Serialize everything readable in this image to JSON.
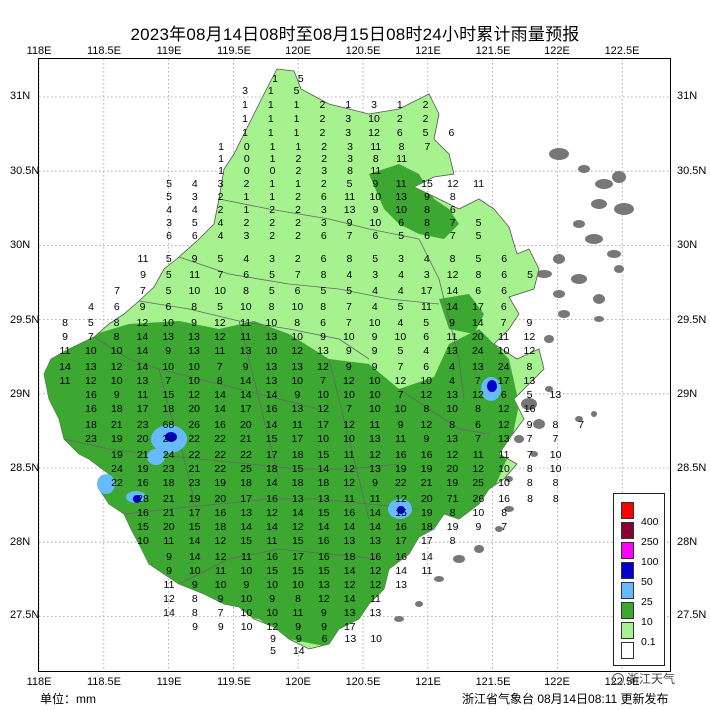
{
  "title": "2023年08月14日08时至08月15日08时24小时累计雨量预报",
  "axes": {
    "lon_ticks": [
      "118E",
      "118.5E",
      "119E",
      "119.5E",
      "120E",
      "120.5E",
      "121E",
      "121.5E",
      "122E",
      "122.5E"
    ],
    "lat_ticks": [
      "31N",
      "30.5N",
      "30N",
      "29.5N",
      "29N",
      "28.5N",
      "28N",
      "27.5N"
    ]
  },
  "legend": {
    "items": [
      {
        "label": "400",
        "color": "#ff0000"
      },
      {
        "label": "250",
        "color": "#8b0033"
      },
      {
        "label": "100",
        "color": "#ff00ff"
      },
      {
        "label": "50",
        "color": "#0000cc"
      },
      {
        "label": "25",
        "color": "#66bbff"
      },
      {
        "label": "10",
        "color": "#3ca832"
      },
      {
        "label": "0.1",
        "color": "#a6f28f"
      },
      {
        "label": "",
        "color": "#ffffff"
      }
    ]
  },
  "unit": "单位：mm",
  "issuer": "浙江省气象台 08月14日08:11 更新发布",
  "watermark": "浙江天气",
  "colors": {
    "light_green": "#a6f28f",
    "mid_green": "#3ca832",
    "light_blue": "#66bbff",
    "dark_blue": "#0000cc",
    "islands": "#777777",
    "borders": "#666666"
  },
  "rainfall_values": [
    [
      "1",
      "5"
    ],
    [
      "3",
      "1",
      "5"
    ],
    [
      "1",
      "1",
      "1",
      "2",
      "1",
      "3",
      "1",
      "2"
    ],
    [
      "1",
      "1",
      "1",
      "2",
      "3",
      "10",
      "2",
      "2"
    ],
    [
      "1",
      "1",
      "1",
      "2",
      "3",
      "12",
      "6",
      "5",
      "6"
    ],
    [
      "1",
      "0",
      "1",
      "1",
      "2",
      "3",
      "11",
      "8",
      "7"
    ],
    [
      "1",
      "0",
      "1",
      "2",
      "2",
      "3",
      "8",
      "11"
    ],
    [
      "1",
      "0",
      "0",
      "2",
      "3",
      "8",
      "11"
    ],
    [
      "5",
      "4",
      "3",
      "2",
      "1",
      "1",
      "2",
      "5",
      "9",
      "11",
      "15",
      "12",
      "11"
    ],
    [
      "5",
      "3",
      "2",
      "1",
      "1",
      "2",
      "6",
      "11",
      "10",
      "13",
      "9",
      "8"
    ],
    [
      "4",
      "4",
      "2",
      "1",
      "2",
      "2",
      "3",
      "13",
      "9",
      "10",
      "8",
      "6"
    ],
    [
      "3",
      "5",
      "4",
      "2",
      "2",
      "2",
      "3",
      "9",
      "10",
      "6",
      "8",
      "7",
      "5"
    ],
    [
      "6",
      "6",
      "4",
      "3",
      "2",
      "2",
      "6",
      "7",
      "6",
      "5",
      "6",
      "7",
      "5"
    ],
    [
      "11",
      "5",
      "9",
      "5",
      "4",
      "3",
      "2",
      "6",
      "8",
      "5",
      "3",
      "4",
      "8",
      "5",
      "6"
    ],
    [
      "9",
      "5",
      "11",
      "7",
      "6",
      "5",
      "7",
      "8",
      "4",
      "3",
      "4",
      "3",
      "12",
      "8",
      "6",
      "5"
    ],
    [
      "7",
      "7",
      "5",
      "10",
      "10",
      "8",
      "5",
      "6",
      "5",
      "5",
      "4",
      "4",
      "17",
      "14",
      "6",
      "6"
    ],
    [
      "4",
      "6",
      "9",
      "6",
      "8",
      "5",
      "10",
      "8",
      "10",
      "8",
      "7",
      "4",
      "5",
      "11",
      "14",
      "17",
      "6"
    ],
    [
      "8",
      "5",
      "8",
      "12",
      "10",
      "9",
      "12",
      "11",
      "10",
      "8",
      "6",
      "7",
      "10",
      "4",
      "5",
      "9",
      "14",
      "7",
      "9"
    ],
    [
      "9",
      "7",
      "8",
      "14",
      "13",
      "13",
      "12",
      "11",
      "13",
      "10",
      "9",
      "10",
      "9",
      "10",
      "6",
      "11",
      "20",
      "11",
      "12"
    ],
    [
      "11",
      "10",
      "10",
      "14",
      "9",
      "13",
      "11",
      "13",
      "10",
      "12",
      "13",
      "9",
      "9",
      "5",
      "4",
      "13",
      "24",
      "10",
      "12"
    ],
    [
      "14",
      "13",
      "12",
      "14",
      "10",
      "10",
      "7",
      "9",
      "13",
      "13",
      "12",
      "9",
      "9",
      "7",
      "6",
      "4",
      "13",
      "24",
      "8"
    ],
    [
      "11",
      "12",
      "10",
      "13",
      "7",
      "10",
      "8",
      "14",
      "13",
      "10",
      "7",
      "12",
      "10",
      "12",
      "10",
      "4",
      "7",
      "17",
      "13"
    ],
    [
      "16",
      "9",
      "11",
      "15",
      "12",
      "14",
      "14",
      "14",
      "9",
      "10",
      "10",
      "10",
      "7",
      "12",
      "13",
      "12",
      "6",
      "5",
      "13"
    ],
    [
      "16",
      "18",
      "17",
      "18",
      "20",
      "14",
      "17",
      "16",
      "13",
      "12",
      "7",
      "10",
      "10",
      "8",
      "10",
      "8",
      "12",
      "16"
    ],
    [
      "18",
      "21",
      "23",
      "68",
      "26",
      "16",
      "20",
      "14",
      "11",
      "17",
      "12",
      "11",
      "9",
      "12",
      "8",
      "6",
      "12",
      "9",
      "8",
      "7"
    ],
    [
      "23",
      "19",
      "20",
      "24",
      "22",
      "22",
      "21",
      "15",
      "17",
      "10",
      "10",
      "13",
      "11",
      "9",
      "13",
      "7",
      "13",
      "7",
      "7"
    ],
    [
      "19",
      "21",
      "24",
      "22",
      "22",
      "22",
      "17",
      "18",
      "15",
      "11",
      "12",
      "16",
      "16",
      "12",
      "11",
      "11",
      "7",
      "10"
    ],
    [
      "24",
      "19",
      "23",
      "21",
      "22",
      "25",
      "18",
      "15",
      "14",
      "12",
      "13",
      "19",
      "19",
      "20",
      "12",
      "10",
      "8",
      "10"
    ],
    [
      "22",
      "16",
      "18",
      "23",
      "19",
      "18",
      "14",
      "18",
      "18",
      "12",
      "9",
      "22",
      "21",
      "19",
      "25",
      "10",
      "8",
      "8"
    ],
    [
      "28",
      "21",
      "19",
      "20",
      "17",
      "16",
      "13",
      "13",
      "11",
      "11",
      "12",
      "20",
      "71",
      "26",
      "16",
      "8",
      "8"
    ],
    [
      "16",
      "21",
      "17",
      "16",
      "13",
      "12",
      "14",
      "15",
      "16",
      "14",
      "15",
      "19",
      "8",
      "10",
      "8"
    ],
    [
      "15",
      "20",
      "15",
      "18",
      "14",
      "14",
      "12",
      "14",
      "14",
      "14",
      "16",
      "18",
      "19",
      "9",
      "7"
    ],
    [
      "10",
      "11",
      "14",
      "12",
      "15",
      "11",
      "15",
      "16",
      "13",
      "13",
      "17",
      "17",
      "8"
    ],
    [
      "9",
      "14",
      "12",
      "11",
      "16",
      "17",
      "16",
      "18",
      "16",
      "16",
      "14"
    ],
    [
      "9",
      "10",
      "11",
      "10",
      "15",
      "15",
      "15",
      "14",
      "12",
      "14",
      "11"
    ],
    [
      "11",
      "9",
      "10",
      "9",
      "10",
      "10",
      "13",
      "12",
      "12",
      "13"
    ],
    [
      "12",
      "8",
      "9",
      "10",
      "9",
      "8",
      "12",
      "14",
      "11"
    ],
    [
      "14",
      "8",
      "7",
      "10",
      "10",
      "11",
      "9",
      "13",
      "13"
    ],
    [
      "9",
      "9",
      "10",
      "12",
      "9",
      "9",
      "17"
    ],
    [
      "9",
      "9",
      "6",
      "13",
      "10"
    ],
    [
      "5",
      "14"
    ]
  ]
}
